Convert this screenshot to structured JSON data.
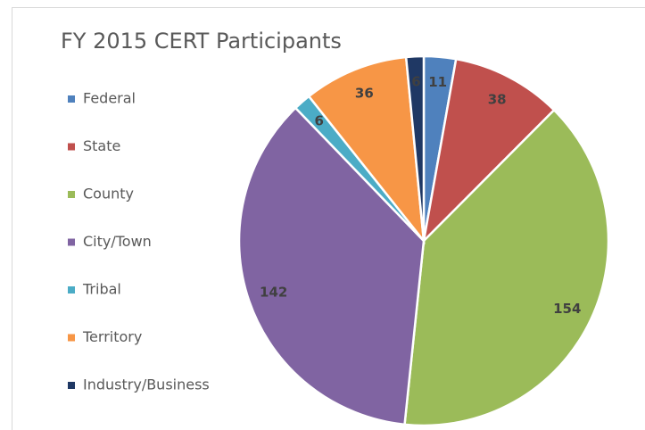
{
  "chart_data": {
    "type": "pie",
    "title": "FY 2015 CERT Participants",
    "categories": [
      "Federal",
      "State",
      "County",
      "City/Town",
      "Tribal",
      "Territory",
      "Industry/Business"
    ],
    "values": [
      11,
      38,
      154,
      142,
      6,
      36,
      6
    ],
    "colors": [
      "#4f81bd",
      "#c0504d",
      "#9bbb59",
      "#8064a2",
      "#4bacc6",
      "#f79646",
      "#1f3864"
    ],
    "legend": "left"
  }
}
